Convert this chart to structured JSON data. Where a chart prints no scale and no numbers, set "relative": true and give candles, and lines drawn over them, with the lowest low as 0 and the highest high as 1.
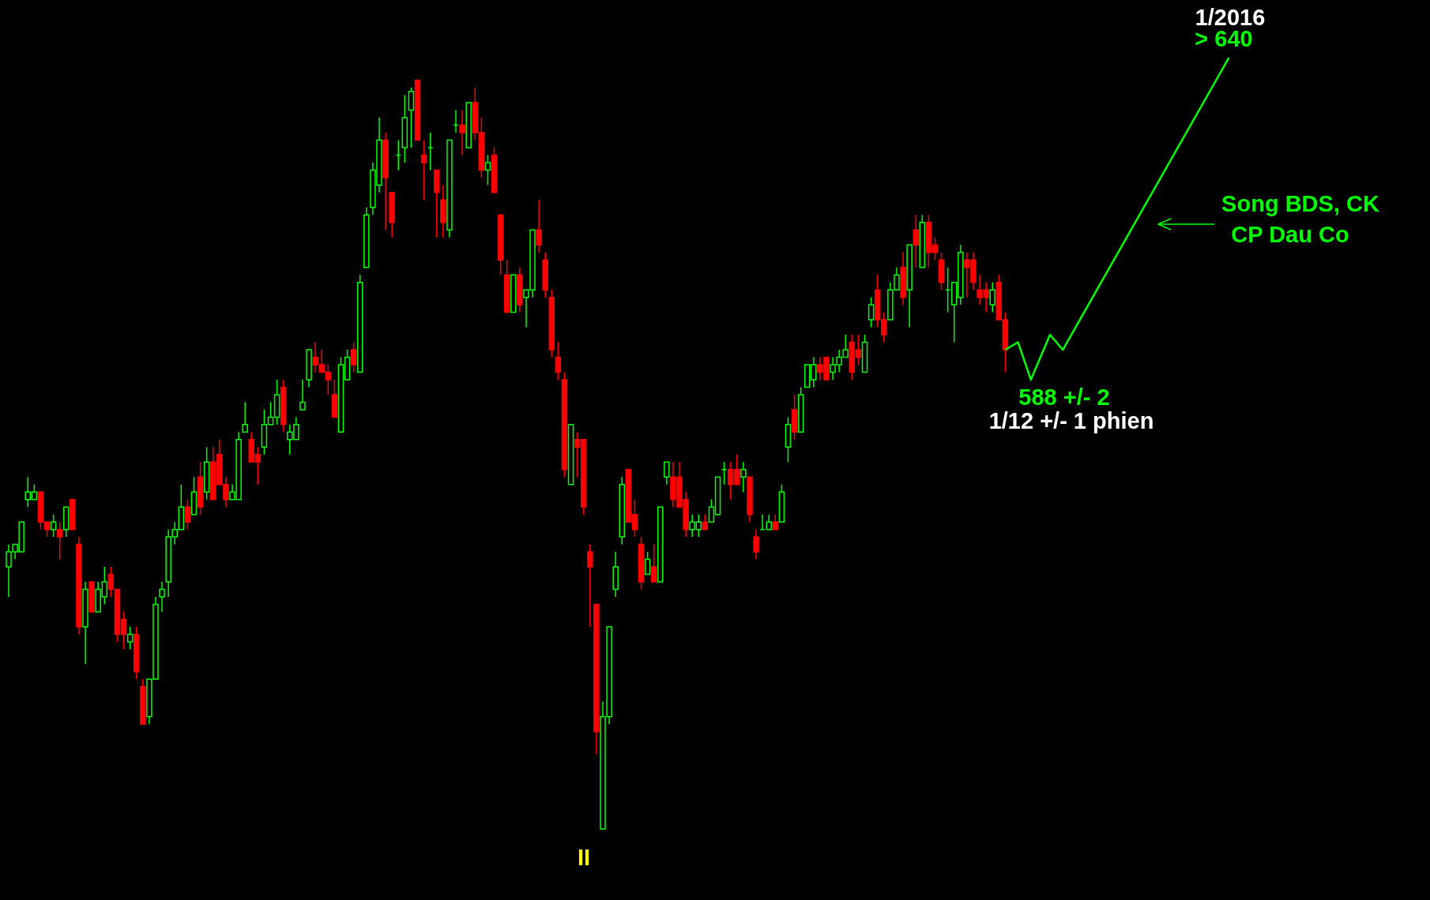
{
  "chart_data": {
    "type": "candlestick",
    "relative": true,
    "categories": [
      null,
      null,
      null,
      null,
      null,
      null,
      null,
      null,
      null,
      null,
      null,
      null,
      null,
      null,
      null,
      null,
      null,
      null,
      null,
      null,
      null,
      null,
      null,
      null,
      null,
      null,
      null,
      null,
      null,
      null,
      null,
      null,
      null,
      null,
      null,
      null,
      null,
      null,
      null,
      null,
      null,
      null,
      null,
      null,
      null,
      null,
      null,
      null,
      null,
      null,
      null,
      null,
      null,
      null,
      null,
      null,
      null,
      null,
      null,
      null,
      null,
      null,
      null,
      null,
      null,
      null,
      null,
      null,
      null,
      null,
      null,
      null,
      null,
      null,
      null,
      null,
      null,
      null,
      null,
      null,
      null,
      null,
      null,
      null,
      null,
      null,
      null,
      null,
      null,
      null,
      null,
      null,
      null,
      null,
      null,
      null,
      null,
      null,
      null,
      null,
      null,
      null,
      null,
      null,
      null,
      null,
      null,
      null,
      null,
      null,
      null,
      null,
      null,
      null,
      null,
      null,
      null,
      null,
      null,
      null,
      null,
      null,
      null,
      null,
      null,
      null,
      null,
      null,
      null,
      null,
      null,
      null,
      null,
      null,
      null,
      null,
      null,
      null,
      null,
      null,
      null,
      null,
      null,
      null,
      null,
      null,
      null,
      null,
      null,
      null,
      null,
      null,
      null,
      null,
      null,
      null,
      null,
      null,
      null,
      null,
      null,
      null,
      null,
      null,
      null,
      null,
      null,
      null,
      null,
      null,
      null,
      null,
      null,
      null,
      null,
      null,
      null,
      null,
      null,
      null,
      null,
      null,
      null,
      null,
      null,
      null,
      null,
      null,
      null,
      null,
      null,
      null,
      null,
      null,
      null,
      null,
      null,
      null,
      null,
      null,
      null,
      null,
      null,
      null,
      null,
      null,
      null,
      null,
      null,
      null,
      null,
      null,
      null,
      null,
      null,
      null,
      null,
      null,
      null,
      null,
      null,
      null
    ],
    "ohlc": [
      [
        0.35,
        0.38,
        0.31,
        0.37
      ],
      [
        0.37,
        0.38,
        0.36,
        0.38
      ],
      [
        0.37,
        0.41,
        0.37,
        0.41
      ],
      [
        0.44,
        0.47,
        0.43,
        0.45
      ],
      [
        0.44,
        0.46,
        0.44,
        0.45
      ],
      [
        0.45,
        0.45,
        0.4,
        0.41
      ],
      [
        0.41,
        0.41,
        0.39,
        0.4
      ],
      [
        0.4,
        0.42,
        0.39,
        0.41
      ],
      [
        0.4,
        0.41,
        0.36,
        0.39
      ],
      [
        0.4,
        0.43,
        0.39,
        0.43
      ],
      [
        0.44,
        0.44,
        0.4,
        0.4
      ],
      [
        0.38,
        0.39,
        0.26,
        0.27
      ],
      [
        0.27,
        0.33,
        0.22,
        0.32
      ],
      [
        0.33,
        0.33,
        0.29,
        0.29
      ],
      [
        0.29,
        0.33,
        0.29,
        0.32
      ],
      [
        0.31,
        0.35,
        0.3,
        0.33
      ],
      [
        0.34,
        0.35,
        0.31,
        0.32
      ],
      [
        0.32,
        0.32,
        0.25,
        0.26
      ],
      [
        0.28,
        0.29,
        0.24,
        0.26
      ],
      [
        0.25,
        0.27,
        0.24,
        0.26
      ],
      [
        0.26,
        0.27,
        0.2,
        0.21
      ],
      [
        0.19,
        0.2,
        0.14,
        0.14
      ],
      [
        0.15,
        0.2,
        0.14,
        0.2
      ],
      [
        0.2,
        0.31,
        0.2,
        0.3
      ],
      [
        0.31,
        0.33,
        0.29,
        0.32
      ],
      [
        0.33,
        0.4,
        0.31,
        0.39
      ],
      [
        0.39,
        0.41,
        0.38,
        0.4
      ],
      [
        0.4,
        0.46,
        0.4,
        0.43
      ],
      [
        0.43,
        0.44,
        0.4,
        0.41
      ],
      [
        0.42,
        0.47,
        0.42,
        0.45
      ],
      [
        0.47,
        0.49,
        0.42,
        0.43
      ],
      [
        0.45,
        0.51,
        0.44,
        0.49
      ],
      [
        0.49,
        0.51,
        0.44,
        0.44
      ],
      [
        0.5,
        0.52,
        0.46,
        0.46
      ],
      [
        0.46,
        0.47,
        0.43,
        0.44
      ],
      [
        0.44,
        0.46,
        0.44,
        0.45
      ],
      [
        0.44,
        0.53,
        0.44,
        0.52
      ],
      [
        0.53,
        0.57,
        0.53,
        0.54
      ],
      [
        0.52,
        0.53,
        0.49,
        0.49
      ],
      [
        0.5,
        0.51,
        0.46,
        0.49
      ],
      [
        0.51,
        0.56,
        0.5,
        0.54
      ],
      [
        0.54,
        0.57,
        0.54,
        0.55
      ],
      [
        0.55,
        0.6,
        0.54,
        0.58
      ],
      [
        0.59,
        0.6,
        0.53,
        0.54
      ],
      [
        0.52,
        0.54,
        0.5,
        0.53
      ],
      [
        0.52,
        0.55,
        0.52,
        0.54
      ],
      [
        0.56,
        0.6,
        0.56,
        0.57
      ],
      [
        0.6,
        0.64,
        0.59,
        0.64
      ],
      [
        0.63,
        0.65,
        0.61,
        0.62
      ],
      [
        0.62,
        0.64,
        0.61,
        0.61
      ],
      [
        0.61,
        0.62,
        0.58,
        0.6
      ],
      [
        0.58,
        0.6,
        0.55,
        0.55
      ],
      [
        0.53,
        0.63,
        0.53,
        0.62
      ],
      [
        0.6,
        0.64,
        0.6,
        0.63
      ],
      [
        0.64,
        0.65,
        0.61,
        0.62
      ],
      [
        0.61,
        0.74,
        0.61,
        0.73
      ],
      [
        0.75,
        0.83,
        0.75,
        0.82
      ],
      [
        0.83,
        0.89,
        0.82,
        0.88
      ],
      [
        0.86,
        0.95,
        0.85,
        0.92
      ],
      [
        0.92,
        0.93,
        0.8,
        0.87
      ],
      [
        0.85,
        0.85,
        0.79,
        0.81
      ],
      [
        0.9,
        0.92,
        0.88,
        0.9
      ],
      [
        0.91,
        0.98,
        0.89,
        0.95
      ],
      [
        0.96,
        0.99,
        0.91,
        0.985
      ],
      [
        1.0,
        1.0,
        0.92,
        0.92
      ],
      [
        0.9,
        0.92,
        0.84,
        0.89
      ],
      [
        0.91,
        0.93,
        0.88,
        0.91
      ],
      [
        0.88,
        0.88,
        0.79,
        0.85
      ],
      [
        0.84,
        0.86,
        0.79,
        0.81
      ],
      [
        0.8,
        0.92,
        0.79,
        0.92
      ],
      [
        0.94,
        0.96,
        0.93,
        0.94
      ],
      [
        0.94,
        0.96,
        0.9,
        0.93
      ],
      [
        0.91,
        0.97,
        0.91,
        0.97
      ],
      [
        0.97,
        0.99,
        0.92,
        0.93
      ],
      [
        0.93,
        0.95,
        0.87,
        0.88
      ],
      [
        0.88,
        0.9,
        0.86,
        0.89
      ],
      [
        0.9,
        0.91,
        0.85,
        0.85
      ],
      [
        0.82,
        0.82,
        0.74,
        0.76
      ],
      [
        0.74,
        0.76,
        0.69,
        0.69
      ],
      [
        0.69,
        0.74,
        0.69,
        0.74
      ],
      [
        0.74,
        0.75,
        0.69,
        0.7
      ],
      [
        0.71,
        0.72,
        0.67,
        0.72
      ],
      [
        0.72,
        0.8,
        0.71,
        0.8
      ],
      [
        0.8,
        0.84,
        0.77,
        0.78
      ],
      [
        0.76,
        0.77,
        0.71,
        0.72
      ],
      [
        0.71,
        0.72,
        0.63,
        0.64
      ],
      [
        0.63,
        0.65,
        0.6,
        0.61
      ],
      [
        0.6,
        0.61,
        0.47,
        0.48
      ],
      [
        0.46,
        0.54,
        0.46,
        0.54
      ],
      [
        0.52,
        0.53,
        0.47,
        0.51
      ],
      [
        0.52,
        0.52,
        0.42,
        0.43
      ],
      [
        0.37,
        0.38,
        0.27,
        0.35
      ],
      [
        0.3,
        0.3,
        0.1,
        0.13
      ],
      [
        0.0,
        0.17,
        0.0,
        0.15
      ],
      [
        0.15,
        0.27,
        0.14,
        0.27
      ],
      [
        0.32,
        0.37,
        0.31,
        0.35
      ],
      [
        0.39,
        0.47,
        0.38,
        0.46
      ],
      [
        0.48,
        0.48,
        0.41,
        0.41
      ],
      [
        0.42,
        0.44,
        0.39,
        0.4
      ],
      [
        0.38,
        0.39,
        0.32,
        0.33
      ],
      [
        0.34,
        0.37,
        0.34,
        0.36
      ],
      [
        0.35,
        0.38,
        0.33,
        0.33
      ],
      [
        0.33,
        0.43,
        0.33,
        0.43
      ],
      [
        0.47,
        0.49,
        0.46,
        0.49
      ],
      [
        0.47,
        0.49,
        0.43,
        0.44
      ],
      [
        0.47,
        0.49,
        0.43,
        0.43
      ],
      [
        0.44,
        0.45,
        0.39,
        0.4
      ],
      [
        0.4,
        0.42,
        0.39,
        0.41
      ],
      [
        0.4,
        0.42,
        0.39,
        0.41
      ],
      [
        0.41,
        0.42,
        0.4,
        0.4
      ],
      [
        0.41,
        0.44,
        0.41,
        0.43
      ],
      [
        0.42,
        0.47,
        0.42,
        0.47
      ],
      [
        0.48,
        0.49,
        0.46,
        0.48
      ],
      [
        0.48,
        0.49,
        0.44,
        0.46
      ],
      [
        0.48,
        0.5,
        0.46,
        0.46
      ],
      [
        0.47,
        0.49,
        0.45,
        0.48
      ],
      [
        0.47,
        0.47,
        0.41,
        0.42
      ],
      [
        0.39,
        0.4,
        0.36,
        0.37
      ],
      [
        0.4,
        0.42,
        0.4,
        0.4
      ],
      [
        0.4,
        0.42,
        0.4,
        0.41
      ],
      [
        0.41,
        0.42,
        0.4,
        0.4
      ],
      [
        0.41,
        0.46,
        0.41,
        0.45
      ],
      [
        0.51,
        0.55,
        0.49,
        0.54
      ],
      [
        0.56,
        0.58,
        0.52,
        0.53
      ],
      [
        0.53,
        0.59,
        0.53,
        0.58
      ],
      [
        0.59,
        0.62,
        0.59,
        0.62
      ],
      [
        0.6,
        0.63,
        0.59,
        0.62
      ],
      [
        0.62,
        0.63,
        0.6,
        0.61
      ],
      [
        0.63,
        0.63,
        0.6,
        0.6
      ],
      [
        0.61,
        0.63,
        0.6,
        0.62
      ],
      [
        0.62,
        0.64,
        0.61,
        0.63
      ],
      [
        0.63,
        0.66,
        0.63,
        0.64
      ],
      [
        0.65,
        0.66,
        0.6,
        0.61
      ],
      [
        0.64,
        0.66,
        0.62,
        0.63
      ],
      [
        0.61,
        0.66,
        0.61,
        0.65
      ],
      [
        0.68,
        0.71,
        0.67,
        0.7
      ],
      [
        0.72,
        0.74,
        0.67,
        0.68
      ],
      [
        0.68,
        0.69,
        0.65,
        0.66
      ],
      [
        0.68,
        0.73,
        0.68,
        0.72
      ],
      [
        0.72,
        0.75,
        0.72,
        0.74
      ],
      [
        0.75,
        0.77,
        0.7,
        0.71
      ],
      [
        0.72,
        0.78,
        0.67,
        0.78
      ],
      [
        0.8,
        0.82,
        0.75,
        0.78
      ],
      [
        0.75,
        0.82,
        0.75,
        0.81
      ],
      [
        0.81,
        0.82,
        0.75,
        0.77
      ],
      [
        0.78,
        0.79,
        0.76,
        0.77
      ],
      [
        0.76,
        0.77,
        0.72,
        0.73
      ],
      [
        0.72,
        0.75,
        0.69,
        0.72
      ],
      [
        0.7,
        0.73,
        0.65,
        0.73
      ],
      [
        0.71,
        0.78,
        0.7,
        0.77
      ],
      [
        0.76,
        0.77,
        0.71,
        0.75
      ],
      [
        0.76,
        0.77,
        0.72,
        0.73
      ],
      [
        0.72,
        0.74,
        0.7,
        0.71
      ],
      [
        0.72,
        0.73,
        0.69,
        0.71
      ],
      [
        0.7,
        0.73,
        0.69,
        0.72
      ],
      [
        0.73,
        0.74,
        0.68,
        0.68
      ],
      [
        0.68,
        0.69,
        0.61,
        0.64
      ],
      null,
      null,
      null,
      null,
      null,
      null,
      null,
      null,
      null,
      null,
      null,
      null,
      null,
      null,
      null,
      null,
      null,
      null,
      null,
      null,
      null,
      null,
      null,
      null,
      null,
      null,
      null,
      null,
      null,
      null,
      null,
      null,
      null,
      null,
      null,
      null,
      null,
      null,
      null,
      null,
      null,
      null,
      null,
      null,
      null,
      null,
      null,
      null,
      null,
      null,
      null,
      null,
      null,
      null,
      null,
      null,
      null,
      null,
      null,
      null,
      null,
      null,
      null,
      null,
      null
    ],
    "series": [
      {
        "type": "line",
        "color": "#00ff00",
        "line_style": "solid",
        "marker": "none",
        "values": [
          null,
          null,
          null,
          null,
          null,
          null,
          null,
          null,
          null,
          null,
          null,
          null,
          null,
          null,
          null,
          null,
          null,
          null,
          null,
          null,
          null,
          null,
          null,
          null,
          null,
          null,
          null,
          null,
          null,
          null,
          null,
          null,
          null,
          null,
          null,
          null,
          null,
          null,
          null,
          null,
          null,
          null,
          null,
          null,
          null,
          null,
          null,
          null,
          null,
          null,
          null,
          null,
          null,
          null,
          null,
          null,
          null,
          null,
          null,
          null,
          null,
          null,
          null,
          null,
          null,
          null,
          null,
          null,
          null,
          null,
          null,
          null,
          null,
          null,
          null,
          null,
          null,
          null,
          null,
          null,
          null,
          null,
          null,
          null,
          null,
          null,
          null,
          null,
          null,
          null,
          null,
          null,
          null,
          null,
          null,
          null,
          null,
          null,
          null,
          null,
          null,
          null,
          null,
          null,
          null,
          null,
          null,
          null,
          null,
          null,
          null,
          null,
          null,
          null,
          null,
          null,
          null,
          null,
          null,
          null,
          null,
          null,
          null,
          null,
          null,
          null,
          null,
          null,
          null,
          null,
          null,
          null,
          null,
          null,
          null,
          null,
          null,
          null,
          null,
          null,
          null,
          null,
          null,
          null,
          null,
          null,
          null,
          null,
          null,
          null,
          null,
          null,
          null,
          null,
          null,
          null,
          0.64,
          null,
          0.65,
          null,
          0.6,
          null,
          null,
          0.66,
          null,
          0.64,
          null,
          null,
          null,
          null,
          null,
          null,
          null,
          null,
          null,
          null,
          null,
          null,
          null,
          null,
          null,
          null,
          null,
          null,
          null,
          null,
          null,
          null,
          null,
          null,
          null,
          1.03,
          null,
          null,
          null,
          null,
          null,
          null,
          null,
          null,
          null,
          null,
          null,
          null,
          null,
          null,
          null,
          null,
          null,
          null,
          null,
          null,
          null,
          null,
          null,
          null,
          null,
          null,
          null,
          null,
          null,
          null
        ]
      }
    ],
    "annotations": [
      "1/2016",
      "> 640",
      "Song BDS, CK",
      "CP Dau Co",
      "588 +/- 2",
      "1/12 +/- 1 phien",
      "II"
    ]
  }
}
